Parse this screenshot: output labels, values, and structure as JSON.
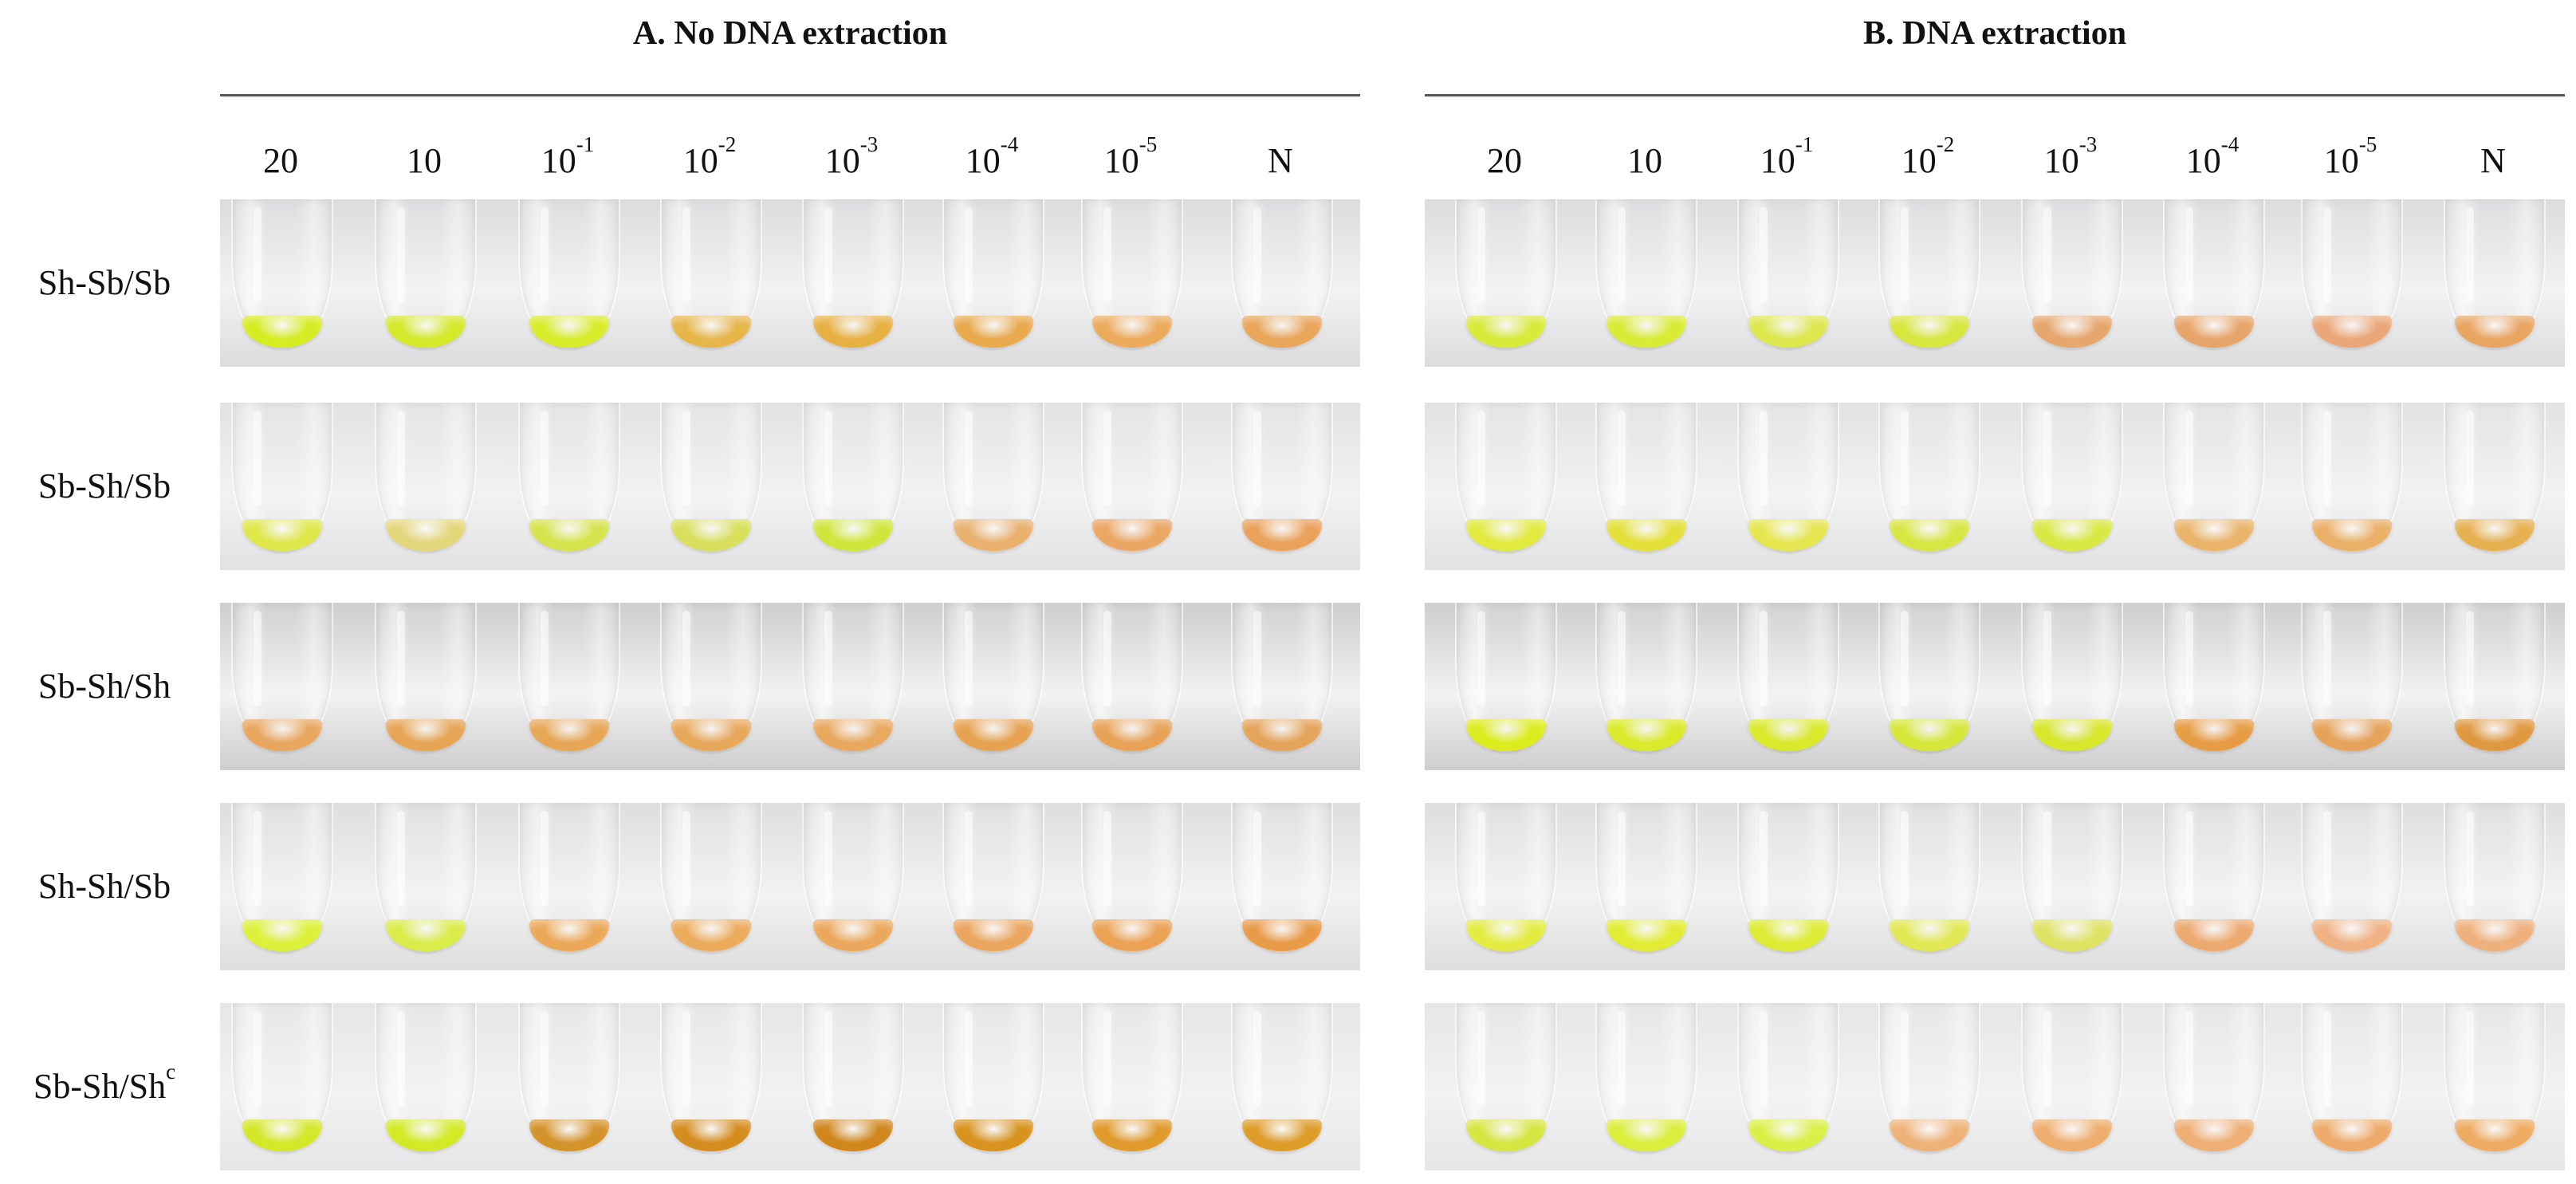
{
  "panels": [
    {
      "title": "A. No DNA extraction"
    },
    {
      "title": "B. DNA extraction"
    }
  ],
  "columns": [
    {
      "base": "20",
      "exp": ""
    },
    {
      "base": "10",
      "exp": ""
    },
    {
      "base": "10",
      "exp": "-1"
    },
    {
      "base": "10",
      "exp": "-2"
    },
    {
      "base": "10",
      "exp": "-3"
    },
    {
      "base": "10",
      "exp": "-4"
    },
    {
      "base": "10",
      "exp": "-5"
    },
    {
      "base": "N",
      "exp": ""
    }
  ],
  "rows": [
    {
      "label": "Sh-Sb/Sb",
      "sup": ""
    },
    {
      "label": "Sb-Sh/Sb",
      "sup": ""
    },
    {
      "label": "Sb-Sh/Sh",
      "sup": ""
    },
    {
      "label": "Sh-Sh/Sb",
      "sup": ""
    },
    {
      "label": "Sb-Sh/Sh",
      "sup": "c"
    }
  ],
  "colors": {
    "background_strips": [
      "#dcdcdf",
      "#e2e2e4",
      "#cfcdcf",
      "#dededf",
      "#e6e6e8"
    ],
    "yellow": "#d7ec2a",
    "lime": "#e0ea4a",
    "orange": "#e7a652",
    "light_orange": "#f0b47c",
    "dark_orange": "#d88a1e",
    "pale_yellow": "#e8e070"
  },
  "results": {
    "A": [
      [
        "#d6ec22",
        "#d3e92a",
        "#d8ec2c",
        "#e6b64a",
        "#e7b043",
        "#e8aa4c",
        "#ebaa5c",
        "#e9a55a"
      ],
      [
        "#dfe74a",
        "#e4d67a",
        "#d5e44c",
        "#d8df5a",
        "#cfe63c",
        "#e9b06e",
        "#eba664",
        "#eaa15a"
      ],
      [
        "#e8a65e",
        "#e6a454",
        "#e7a656",
        "#e8a85c",
        "#e8a85e",
        "#e6a250",
        "#e8a258",
        "#e4a35a"
      ],
      [
        "#ddf03c",
        "#d9ec4a",
        "#eca859",
        "#ecab5c",
        "#eba85c",
        "#eba55e",
        "#eba254",
        "#e99a48"
      ],
      [
        "#d4e728",
        "#d2ea26",
        "#d4922a",
        "#d48c1e",
        "#d0861c",
        "#d8921e",
        "#e09a2c",
        "#dd9c28"
      ]
    ],
    "B": [
      [
        "#d8ea3a",
        "#d9eb34",
        "#dde74e",
        "#d8e640",
        "#e6a66c",
        "#e7a468",
        "#eaa678",
        "#e9a462"
      ],
      [
        "#e2ea40",
        "#e4e03a",
        "#e6e650",
        "#d8e644",
        "#d9e844",
        "#e9b46a",
        "#eab068",
        "#e6b050"
      ],
      [
        "#ddec1e",
        "#dbea2a",
        "#dae92c",
        "#d6e63a",
        "#d8e62c",
        "#e69c44",
        "#e6a25a",
        "#e09840"
      ],
      [
        "#e4ec44",
        "#e2ec34",
        "#ddeb34",
        "#e2e854",
        "#e0e264",
        "#eca970",
        "#f0b284",
        "#eeb07c"
      ],
      [
        "#d6e640",
        "#dbee3c",
        "#daf046",
        "#eeb278",
        "#eead6c",
        "#eeae74",
        "#eeaa6a",
        "#eeaa60"
      ]
    ]
  }
}
